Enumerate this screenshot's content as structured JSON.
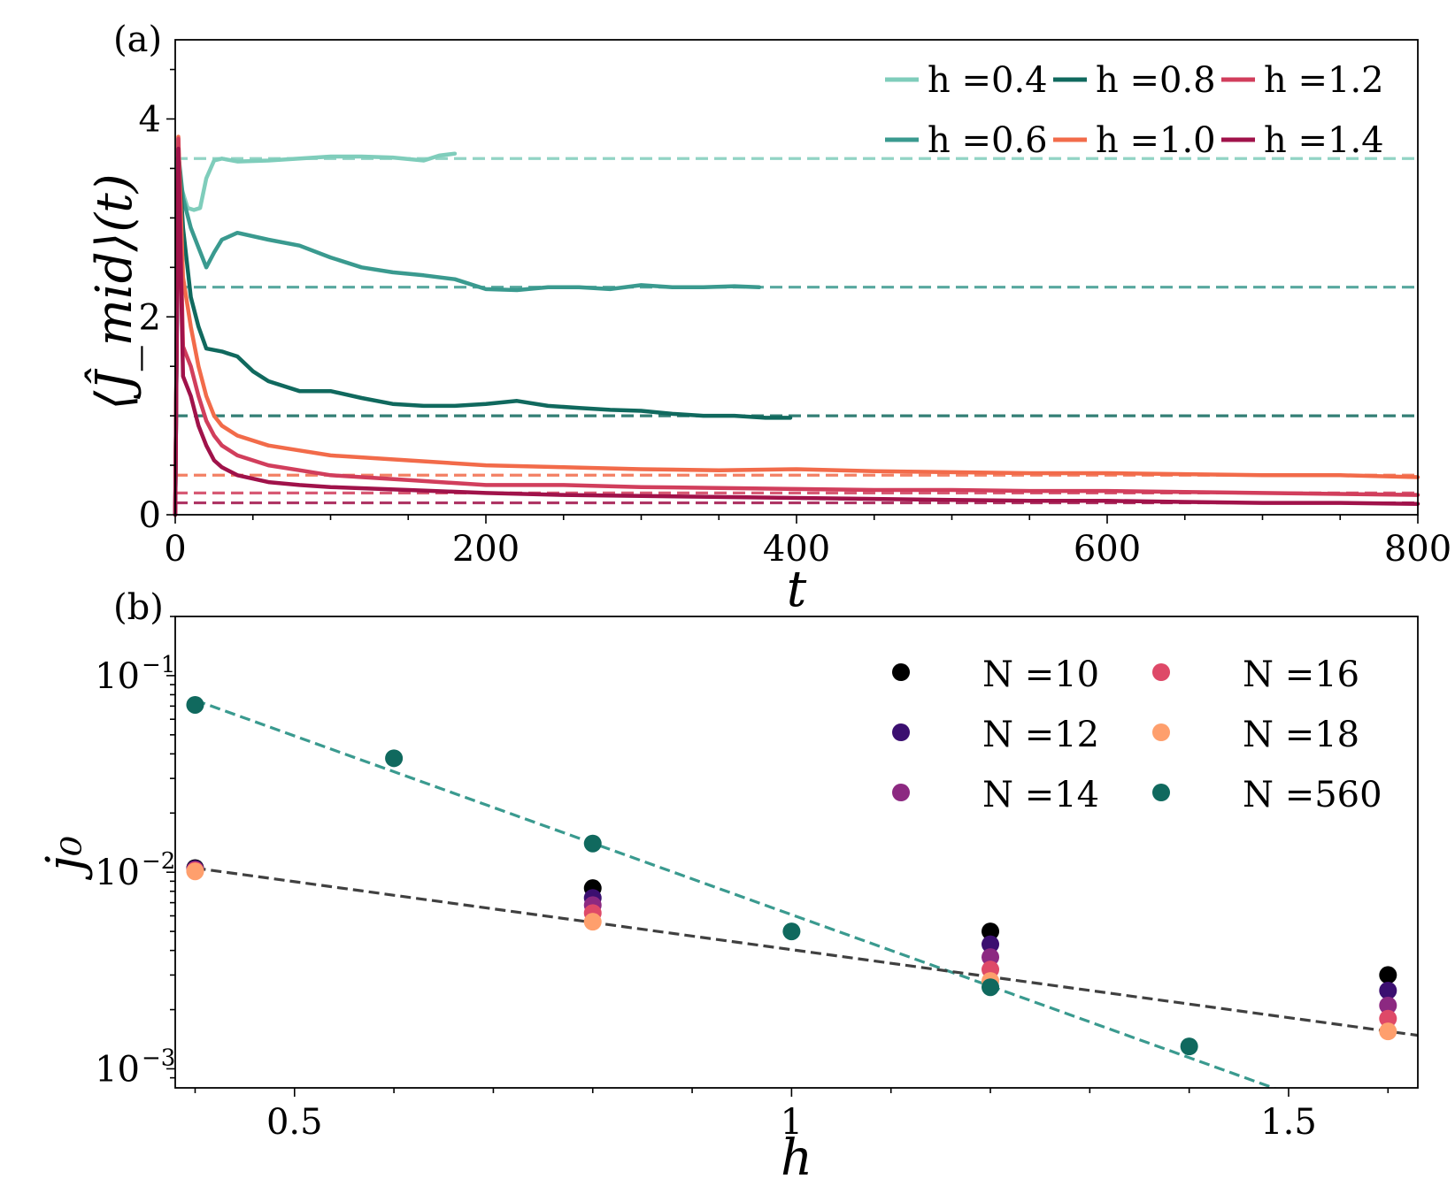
{
  "chart_data": [
    {
      "type": "line",
      "panel_label": "(a)",
      "xlabel": "t",
      "ylabel": "⟨Ĵ_mid⟩(t)",
      "xlim": [
        0,
        800
      ],
      "ylim": [
        0,
        4.8
      ],
      "xticks": [
        0,
        200,
        400,
        600,
        800
      ],
      "yticks": [
        0,
        2,
        4
      ],
      "xtick_labels": [
        "0",
        "200",
        "400",
        "600",
        "800"
      ],
      "ytick_labels": [
        "0",
        "2",
        "4"
      ],
      "legend_position": "top-right",
      "series": [
        {
          "name": "h =0.4",
          "color": "#7fcdbb",
          "steady_state": 3.6,
          "x": [
            0,
            2,
            4,
            8,
            12,
            16,
            20,
            25,
            30,
            40,
            60,
            80,
            100,
            120,
            140,
            160,
            170,
            180
          ],
          "y": [
            0,
            3.6,
            3.3,
            3.1,
            3.08,
            3.1,
            3.4,
            3.58,
            3.6,
            3.57,
            3.58,
            3.6,
            3.62,
            3.62,
            3.61,
            3.58,
            3.63,
            3.65
          ]
        },
        {
          "name": "h =0.6",
          "color": "#3a9a8f",
          "steady_state": 2.3,
          "x": [
            0,
            2,
            5,
            10,
            15,
            20,
            25,
            30,
            40,
            60,
            80,
            100,
            120,
            140,
            160,
            180,
            200,
            220,
            240,
            260,
            280,
            300,
            320,
            340,
            360,
            376
          ],
          "y": [
            0,
            3.65,
            3.2,
            2.9,
            2.7,
            2.5,
            2.65,
            2.78,
            2.85,
            2.78,
            2.72,
            2.6,
            2.5,
            2.45,
            2.42,
            2.38,
            2.28,
            2.27,
            2.3,
            2.3,
            2.28,
            2.32,
            2.3,
            2.3,
            2.31,
            2.3
          ]
        },
        {
          "name": "h =0.8",
          "color": "#10695e",
          "steady_state": 1.0,
          "x": [
            0,
            2,
            5,
            10,
            15,
            20,
            30,
            40,
            50,
            60,
            80,
            100,
            120,
            140,
            160,
            180,
            200,
            220,
            240,
            260,
            280,
            300,
            320,
            340,
            360,
            380,
            396
          ],
          "y": [
            0,
            3.7,
            2.9,
            2.2,
            1.9,
            1.68,
            1.65,
            1.6,
            1.45,
            1.35,
            1.25,
            1.25,
            1.18,
            1.12,
            1.1,
            1.1,
            1.12,
            1.15,
            1.1,
            1.08,
            1.06,
            1.05,
            1.02,
            1.0,
            1.0,
            0.98,
            0.98
          ]
        },
        {
          "name": "h =1.0",
          "color": "#f26b4a",
          "steady_state": 0.4,
          "x": [
            0,
            2,
            5,
            10,
            15,
            20,
            25,
            30,
            40,
            60,
            80,
            100,
            150,
            200,
            250,
            300,
            350,
            400,
            450,
            500,
            550,
            600,
            650,
            700,
            750,
            800
          ],
          "y": [
            0,
            3.82,
            2.4,
            1.9,
            1.5,
            1.2,
            1.0,
            0.9,
            0.8,
            0.7,
            0.65,
            0.6,
            0.55,
            0.5,
            0.48,
            0.46,
            0.45,
            0.46,
            0.44,
            0.43,
            0.42,
            0.42,
            0.41,
            0.4,
            0.4,
            0.38
          ]
        },
        {
          "name": "h =1.2",
          "color": "#d13e5c",
          "steady_state": 0.22,
          "x": [
            0,
            2,
            5,
            10,
            15,
            20,
            25,
            30,
            40,
            60,
            80,
            100,
            150,
            200,
            250,
            300,
            350,
            400,
            450,
            500,
            550,
            600,
            650,
            700,
            750,
            800
          ],
          "y": [
            0,
            3.8,
            1.7,
            1.5,
            1.2,
            0.95,
            0.8,
            0.7,
            0.6,
            0.5,
            0.45,
            0.4,
            0.35,
            0.3,
            0.3,
            0.28,
            0.27,
            0.26,
            0.25,
            0.25,
            0.24,
            0.24,
            0.23,
            0.22,
            0.21,
            0.2
          ]
        },
        {
          "name": "h =1.4",
          "color": "#a0124a",
          "steady_state": 0.12,
          "x": [
            0,
            2,
            5,
            10,
            15,
            20,
            25,
            30,
            40,
            60,
            80,
            100,
            150,
            200,
            250,
            300,
            350,
            400,
            450,
            500,
            550,
            600,
            650,
            700,
            750,
            800
          ],
          "y": [
            0,
            3.7,
            1.4,
            1.2,
            0.9,
            0.7,
            0.55,
            0.48,
            0.4,
            0.33,
            0.3,
            0.28,
            0.25,
            0.22,
            0.2,
            0.19,
            0.18,
            0.17,
            0.16,
            0.15,
            0.14,
            0.14,
            0.13,
            0.12,
            0.12,
            0.11
          ]
        }
      ]
    },
    {
      "type": "scatter",
      "panel_label": "(b)",
      "xlabel": "h",
      "ylabel": "j₀",
      "xscale": "linear",
      "yscale": "log",
      "xlim": [
        0.38,
        1.63
      ],
      "ylim": [
        0.0008,
        0.2
      ],
      "xticks": [
        0.5,
        1,
        1.5
      ],
      "xtick_labels": [
        "0.5",
        "1",
        "1.5"
      ],
      "yticks": [
        0.001,
        0.01,
        0.1
      ],
      "ytick_labels": [
        {
          "base": "10",
          "exp": "−3"
        },
        {
          "base": "10",
          "exp": "−2"
        },
        {
          "base": "10",
          "exp": "−1"
        }
      ],
      "legend_position": "top-right",
      "series": [
        {
          "name": "N =10",
          "color": "#000000",
          "x": [
            0.4,
            0.8,
            1.2,
            1.6
          ],
          "y": [
            0.0105,
            0.0083,
            0.005,
            0.003
          ]
        },
        {
          "name": "N =12",
          "color": "#3b0f70",
          "x": [
            0.4,
            0.8,
            1.2,
            1.6
          ],
          "y": [
            0.0104,
            0.0074,
            0.0043,
            0.0025
          ]
        },
        {
          "name": "N =14",
          "color": "#8c2981",
          "x": [
            0.4,
            0.8,
            1.2,
            1.6
          ],
          "y": [
            0.0103,
            0.0068,
            0.0037,
            0.0021
          ]
        },
        {
          "name": "N =16",
          "color": "#de4968",
          "x": [
            0.4,
            0.8,
            1.2,
            1.6
          ],
          "y": [
            0.0102,
            0.0062,
            0.0032,
            0.0018
          ]
        },
        {
          "name": "N =18",
          "color": "#fe9f6d",
          "x": [
            0.4,
            0.8,
            1.2,
            1.6
          ],
          "y": [
            0.0101,
            0.0056,
            0.0028,
            0.00155
          ]
        },
        {
          "name": "N =560",
          "color": "#10695e",
          "x": [
            0.4,
            0.6,
            0.8,
            1.0,
            1.2,
            1.4
          ],
          "y": [
            0.071,
            0.038,
            0.014,
            0.005,
            0.0026,
            0.0013
          ]
        }
      ],
      "fits": [
        {
          "color": "#3a9a8f",
          "x": [
            0.4,
            1.5
          ],
          "y": [
            0.075,
            0.00075
          ]
        },
        {
          "color": "#404040",
          "x": [
            0.4,
            1.63
          ],
          "y": [
            0.0105,
            0.00148
          ]
        }
      ]
    }
  ]
}
